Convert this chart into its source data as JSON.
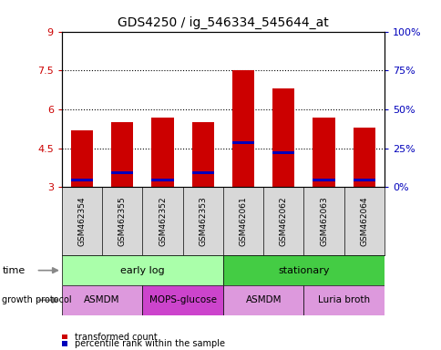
{
  "title": "GDS4250 / ig_546334_545644_at",
  "samples": [
    "GSM462354",
    "GSM462355",
    "GSM462352",
    "GSM462353",
    "GSM462061",
    "GSM462062",
    "GSM462063",
    "GSM462064"
  ],
  "bar_tops": [
    5.2,
    5.5,
    5.7,
    5.5,
    7.5,
    6.8,
    5.7,
    5.3
  ],
  "bar_bottoms": [
    3.0,
    3.0,
    3.0,
    3.0,
    3.0,
    3.0,
    3.0,
    3.0
  ],
  "blue_positions": [
    3.28,
    3.55,
    3.28,
    3.55,
    4.72,
    4.32,
    3.28,
    3.28
  ],
  "bar_color": "#cc0000",
  "blue_color": "#0000bb",
  "ylim_left": [
    3.0,
    9.0
  ],
  "ylim_right": [
    0,
    100
  ],
  "yticks_left": [
    3,
    4.5,
    6,
    7.5,
    9
  ],
  "yticks_right": [
    0,
    25,
    50,
    75,
    100
  ],
  "ytick_labels_left": [
    "3",
    "4.5",
    "6",
    "7.5",
    "9"
  ],
  "ytick_labels_right": [
    "0%",
    "25%",
    "50%",
    "75%",
    "100%"
  ],
  "hlines": [
    4.5,
    6.0,
    7.5
  ],
  "time_groups": [
    {
      "label": "early log",
      "start": 0,
      "end": 4,
      "color": "#aaffaa"
    },
    {
      "label": "stationary",
      "start": 4,
      "end": 8,
      "color": "#44cc44"
    }
  ],
  "protocol_groups": [
    {
      "label": "ASMDM",
      "start": 0,
      "end": 2,
      "color": "#dd99dd"
    },
    {
      "label": "MOPS-glucose",
      "start": 2,
      "end": 4,
      "color": "#cc44cc"
    },
    {
      "label": "ASMDM",
      "start": 4,
      "end": 6,
      "color": "#dd99dd"
    },
    {
      "label": "Luria broth",
      "start": 6,
      "end": 8,
      "color": "#dd99dd"
    }
  ],
  "legend_items": [
    {
      "label": "transformed count",
      "color": "#cc0000"
    },
    {
      "label": "percentile rank within the sample",
      "color": "#0000bb"
    }
  ],
  "left_label_color": "#cc0000",
  "right_label_color": "#0000bb",
  "bg_color": "#ffffff"
}
